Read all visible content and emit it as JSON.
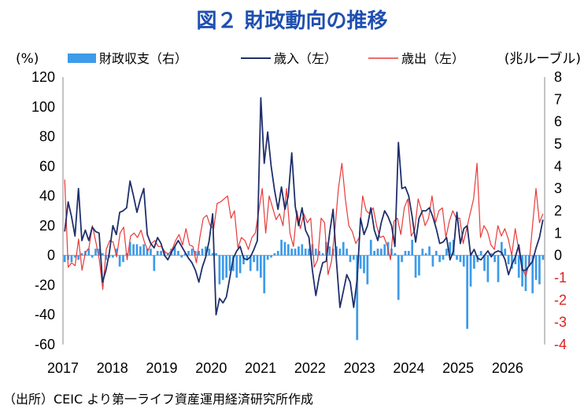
{
  "title": "図２ 財政動向の推移",
  "source": "（出所）CEIC より第一ライフ資産運用経済研究所作成",
  "chart_data": {
    "type": "bar+line",
    "title": "図２ 財政動向の推移",
    "left_unit": "(%)",
    "right_unit": "(兆ルーブル)",
    "left_axis": {
      "min": -60,
      "max": 120,
      "ticks": [
        120,
        100,
        80,
        60,
        40,
        20,
        0,
        -20,
        -40,
        -60
      ]
    },
    "right_axis": {
      "min": -4,
      "max": 8,
      "ticks": [
        8,
        7,
        6,
        5,
        4,
        3,
        2,
        1,
        0,
        -1,
        -2,
        -3,
        -4
      ]
    },
    "x_axis": {
      "start": 2017.0,
      "end": 2026.75,
      "labels": [
        "2017",
        "2018",
        "2019",
        "2020",
        "2021",
        "2022",
        "2023",
        "2024",
        "2025",
        "2026"
      ]
    },
    "grid": false,
    "legend": [
      {
        "label": "財政収支（右）",
        "type": "bar",
        "color": "#3d9be9"
      },
      {
        "label": "歳入（左）",
        "type": "line",
        "color": "#1f2f6b"
      },
      {
        "label": "歳出（左）",
        "type": "line",
        "color": "#e83a3a"
      }
    ],
    "series": [
      {
        "name": "財政収支（右）",
        "axis": "right",
        "color": "#3d9be9",
        "values": [
          -0.3,
          -0.2,
          -0.3,
          -0.1,
          -0.2,
          0.1,
          0.2,
          0.3,
          -0.1,
          0.3,
          0.3,
          0.1,
          -0.2,
          -0.1,
          -0.1,
          0.3,
          -0.5,
          -0.3,
          0.1,
          0.6,
          0.5,
          0.5,
          0.4,
          0.5,
          0.3,
          0.3,
          -0.7,
          0.2,
          0.2,
          0.2,
          0.1,
          0.3,
          0.4,
          0.2,
          -0.1,
          0.1,
          0.2,
          0.3,
          0.2,
          0.2,
          0.3,
          0.4,
          0.3,
          0.1,
          0.1,
          -1.3,
          -1.1,
          -1.0,
          -0.7,
          -0.7,
          -1.0,
          -0.8,
          -0.4,
          -0.2,
          -0.7,
          -0.3,
          -0.7,
          -1.0,
          -1.7,
          -0.2,
          -0.1,
          0.1,
          0.2,
          0.7,
          0.6,
          0.5,
          0.3,
          0.3,
          0.4,
          0.5,
          0.3,
          0.3,
          0.5,
          0.3,
          0.2,
          0.1,
          0.6,
          0.4,
          0.3,
          0.4,
          0.3,
          0.6,
          0.3,
          -0.3,
          -0.2,
          -3.8,
          -0.6,
          -0.8,
          -1.3,
          0.7,
          0.2,
          0.3,
          0.3,
          0.5,
          0.6,
          0.3,
          0.1,
          -2.0,
          -0.3,
          0.2,
          0.2,
          0.7,
          -1.0,
          -0.9,
          0.3,
          0.1,
          0.4,
          -0.5,
          0.2,
          -0.3,
          -0.2,
          0.3,
          0.6,
          0.7,
          -0.2,
          -0.3,
          -0.5,
          -3.3,
          -1.4,
          -0.6,
          -0.3,
          0.2,
          -0.7,
          -1.2,
          0.1,
          -0.3,
          -1.2,
          0.6,
          0.3,
          -0.4,
          -0.6,
          -0.4,
          -1.0,
          -1.4,
          -1.6,
          -0.5,
          -1.7,
          -1.1,
          -1.3,
          -0.2
        ]
      },
      {
        "name": "歳入（左）",
        "axis": "left",
        "color": "#1f2f6b",
        "values": [
          16,
          36,
          26,
          13,
          45,
          10,
          17,
          10,
          19,
          16,
          15,
          -18,
          -10,
          2,
          20,
          14,
          29,
          30,
          32,
          50,
          40,
          29,
          38,
          45,
          14,
          8,
          5,
          12,
          8,
          0,
          -3,
          2,
          6,
          10,
          6,
          2,
          -2,
          -5,
          -10,
          -18,
          -8,
          -1,
          10,
          28,
          -40,
          -29,
          -32,
          -28,
          -15,
          -2,
          3,
          6,
          -2,
          -3,
          -1,
          4,
          10,
          106,
          62,
          83,
          60,
          44,
          31,
          46,
          31,
          40,
          69,
          33,
          20,
          32,
          17,
          12,
          -10,
          -27,
          -14,
          -5,
          -4,
          15,
          31,
          -4,
          -35,
          -24,
          -13,
          -18,
          -35,
          -16,
          25,
          14,
          20,
          32,
          17,
          10,
          22,
          30,
          26,
          20,
          6,
          76,
          45,
          46,
          40,
          26,
          9,
          25,
          30,
          30,
          32,
          26,
          18,
          8,
          9,
          12,
          -3,
          3,
          29,
          8,
          18,
          20,
          0,
          4,
          -2,
          -3,
          0,
          3,
          -1,
          2,
          3,
          2,
          -3,
          -13,
          -6,
          -1,
          7,
          -10,
          -10,
          -7,
          -4,
          5,
          12,
          24
        ]
      },
      {
        "name": "歳出（左）",
        "axis": "left",
        "color": "#e83a3a",
        "values": [
          51,
          -8,
          -5,
          -7,
          11,
          -10,
          2,
          5,
          20,
          9,
          -3,
          -23,
          4,
          10,
          9,
          -1,
          15,
          19,
          -3,
          13,
          15,
          12,
          17,
          9,
          3,
          8,
          10,
          6,
          6,
          2,
          1,
          4,
          10,
          14,
          7,
          18,
          7,
          6,
          -5,
          12,
          25,
          27,
          20,
          18,
          35,
          36,
          38,
          40,
          25,
          30,
          5,
          12,
          10,
          4,
          12,
          15,
          30,
          45,
          15,
          40,
          32,
          24,
          28,
          20,
          45,
          15,
          6,
          30,
          18,
          28,
          22,
          25,
          -8,
          -3,
          25,
          22,
          -13,
          -4,
          18,
          45,
          62,
          38,
          20,
          16,
          8,
          12,
          40,
          30,
          28,
          32,
          20,
          12,
          13,
          7,
          -3,
          23,
          25,
          14,
          32,
          38,
          13,
          17,
          38,
          30,
          20,
          25,
          40,
          22,
          30,
          32,
          12,
          23,
          30,
          25,
          25,
          8,
          18,
          28,
          38,
          62,
          12,
          20,
          16,
          7,
          4,
          20,
          13,
          18,
          11,
          0,
          18,
          4,
          -8,
          -14,
          -6,
          20,
          45,
          22,
          28
        ]
      }
    ]
  }
}
